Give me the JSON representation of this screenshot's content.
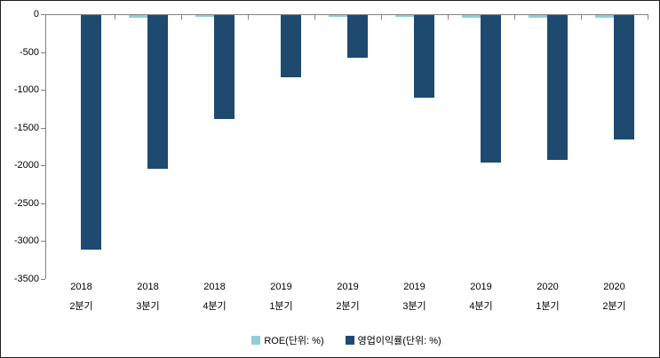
{
  "chart_data": {
    "type": "bar",
    "title": "",
    "xlabel": "",
    "ylabel": "",
    "categories": [
      [
        "2018",
        "2분기"
      ],
      [
        "2018",
        "3분기"
      ],
      [
        "2018",
        "4분기"
      ],
      [
        "2019",
        "1분기"
      ],
      [
        "2019",
        "2분기"
      ],
      [
        "2019",
        "3분기"
      ],
      [
        "2019",
        "4분기"
      ],
      [
        "2020",
        "1분기"
      ],
      [
        "2020",
        "2분기"
      ]
    ],
    "series": [
      {
        "name": "ROE(단위: %)",
        "color": "#92CDDC",
        "values": [
          -5,
          -40,
          -20,
          -5,
          -20,
          -25,
          -40,
          -40,
          -40
        ]
      },
      {
        "name": "영업이익률(단위: %)",
        "color": "#1F4A70",
        "values": [
          -3100,
          -2030,
          -1380,
          -820,
          -560,
          -1090,
          -1950,
          -1920,
          -1650
        ]
      }
    ],
    "ylim": [
      -3500,
      0
    ],
    "ytick_step": 500,
    "ytick_labels": [
      "0",
      "-500",
      "-1000",
      "-1500",
      "-2000",
      "-2500",
      "-3000",
      "-3500"
    ],
    "grid": false,
    "legend_position": "bottom",
    "axis_color": "#808080"
  }
}
